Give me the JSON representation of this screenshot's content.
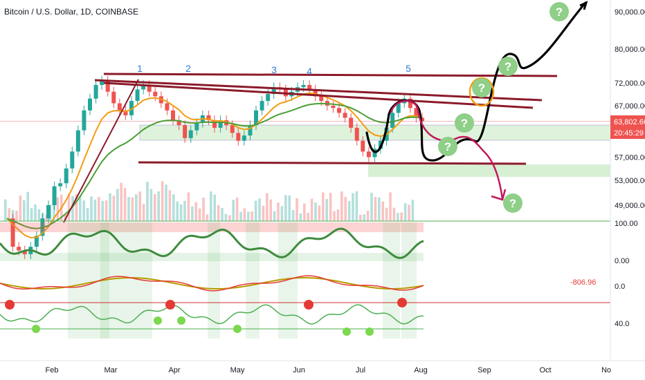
{
  "header": {
    "title": "Bitcoin / U.S. Dollar, 1D, COINBASE"
  },
  "chart_data": {
    "type": "line",
    "title": "Bitcoin / U.S. Dollar, 1D, COINBASE",
    "price_axis": {
      "ticks": [
        "90,000.00",
        "80,000.00",
        "72,000.00",
        "67,000.00",
        "57,000.00",
        "53,000.00",
        "49,000.00"
      ],
      "tick_values": [
        90000,
        80000,
        72000,
        67000,
        57000,
        53000,
        49000
      ],
      "scale": "log"
    },
    "current_price": {
      "label": "63,802.66",
      "countdown": "20:45:29",
      "value": 63802.66
    },
    "time_axis": {
      "ticks": [
        "Feb",
        "Mar",
        "Apr",
        "May",
        "Jun",
        "Jul",
        "Aug",
        "Sep",
        "Oct",
        "No"
      ]
    },
    "wave_labels": [
      "1",
      "2",
      "3",
      "4",
      "5"
    ],
    "indicator_labels": {
      "osc1_top": "100.00",
      "osc1_bottom": "0.00",
      "osc2_value": "-806.96",
      "osc2_zero": "0.0",
      "osc3_level": "40.0"
    },
    "annotation_symbol": "?",
    "series": [
      {
        "name": "",
        "values": [
          47000,
          43000,
          42500,
          42000,
          43000,
          44500,
          47000,
          49000,
          52000,
          52500,
          55000,
          58000,
          62000,
          66000,
          68500,
          71500,
          72500,
          70000,
          67500,
          66000,
          65000,
          68000,
          70500,
          71500,
          70000,
          69000,
          67500,
          66000,
          64000,
          63000,
          60500,
          62000,
          63500,
          65000,
          64000,
          62500,
          64000,
          63000,
          61500,
          60000,
          61000,
          63000,
          66000,
          68000,
          69500,
          71000,
          70500,
          69000,
          70000,
          71000,
          71500,
          70500,
          69000,
          68000,
          67000,
          66500,
          65500,
          64500,
          62500,
          60000,
          58000,
          57000,
          58500,
          60000,
          62500,
          65500,
          67500,
          68500,
          66500,
          64500,
          63802.66
        ]
      }
    ],
    "colors": {
      "wedge_lines": "#8b1a2a",
      "ema_fast": "#f39c12",
      "ema_slow": "#4a9e35",
      "up": "#26a69a",
      "down": "#ef5350",
      "zone_fill": "#b7e3b0",
      "question_bubble": "#8fcf88",
      "projection_black": "#000000",
      "projection_red": "#c2185b",
      "current_price_tag": "#ef5350"
    }
  }
}
